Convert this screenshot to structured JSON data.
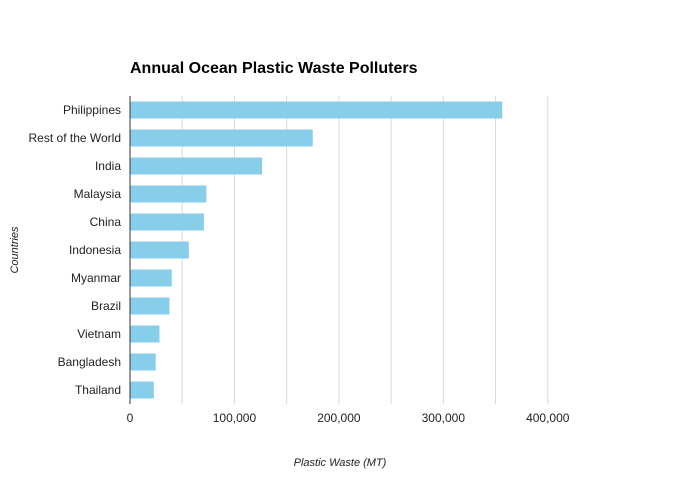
{
  "chart_data": {
    "type": "bar",
    "orientation": "horizontal",
    "title": "Annual Ocean Plastic Waste Polluters",
    "xlabel": "Plastic Waste (MT)",
    "ylabel": "Countries",
    "categories": [
      "Philippines",
      "Rest of the World",
      "India",
      "Malaysia",
      "China",
      "Indonesia",
      "Myanmar",
      "Brazil",
      "Vietnam",
      "Bangladesh",
      "Thailand"
    ],
    "values": [
      356371,
      175000,
      126513,
      73098,
      70707,
      56333,
      40000,
      37799,
      28221,
      24640,
      22806
    ],
    "xlim": [
      0,
      450000
    ],
    "xticks": [
      0,
      100000,
      200000,
      300000,
      400000
    ],
    "xtick_labels": [
      "0",
      "100,000",
      "200,000",
      "300,000",
      "400,000"
    ],
    "grid": true,
    "bar_color": "#87CEEB"
  }
}
